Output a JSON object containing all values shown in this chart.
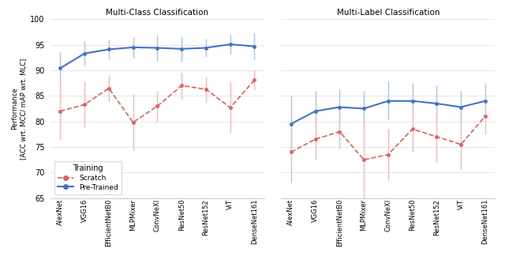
{
  "models": [
    "AlexNet",
    "VGG16",
    "EfficientNetB0",
    "MLPMixer",
    "ConvNeXI",
    "ResNet50",
    "ResNet152",
    "ViT",
    "DenseNet161"
  ],
  "mc_pretrained_mean": [
    90.4,
    93.3,
    94.1,
    94.5,
    94.4,
    94.2,
    94.4,
    95.1,
    94.7
  ],
  "mc_pretrained_err": [
    3.2,
    2.5,
    2.0,
    2.0,
    2.5,
    2.5,
    1.8,
    1.8,
    2.5
  ],
  "mc_scratch_mean": [
    82.0,
    83.3,
    86.5,
    79.8,
    83.0,
    87.0,
    86.3,
    82.7,
    88.1
  ],
  "mc_scratch_err": [
    5.5,
    4.5,
    2.5,
    5.5,
    3.0,
    2.5,
    2.5,
    5.0,
    2.0
  ],
  "ml_pretrained_mean": [
    79.5,
    82.0,
    82.8,
    82.5,
    84.0,
    84.0,
    83.5,
    82.8,
    84.0
  ],
  "ml_pretrained_err": [
    5.5,
    4.0,
    3.5,
    3.5,
    3.8,
    3.5,
    3.5,
    3.2,
    3.5
  ],
  "ml_scratch_mean": [
    74.0,
    76.5,
    78.0,
    72.5,
    73.5,
    78.5,
    77.0,
    75.5,
    81.0
  ],
  "ml_scratch_err": [
    6.0,
    4.0,
    3.5,
    8.0,
    5.0,
    4.5,
    5.0,
    5.0,
    3.5
  ],
  "pretrained_line_color": "#4472c4",
  "pretrained_err_color": "#a8c4e8",
  "scratch_line_color": "#e06060",
  "scratch_err_color": "#f4b8b8",
  "title_mc": "Multi-Class Classification",
  "title_ml": "Multi-Label Classification",
  "ylabel": "Performance\n[ACC wrt. MCC/ mAP wrt. MLC]",
  "ylim": [
    65,
    100
  ],
  "yticks": [
    65,
    70,
    75,
    80,
    85,
    90,
    95,
    100
  ],
  "legend_title": "Training",
  "legend_scratch": "Scratch",
  "legend_pretrained": "Pre-Trained",
  "bg_color": "#ffffff",
  "grid_color": "#e8e8e8"
}
